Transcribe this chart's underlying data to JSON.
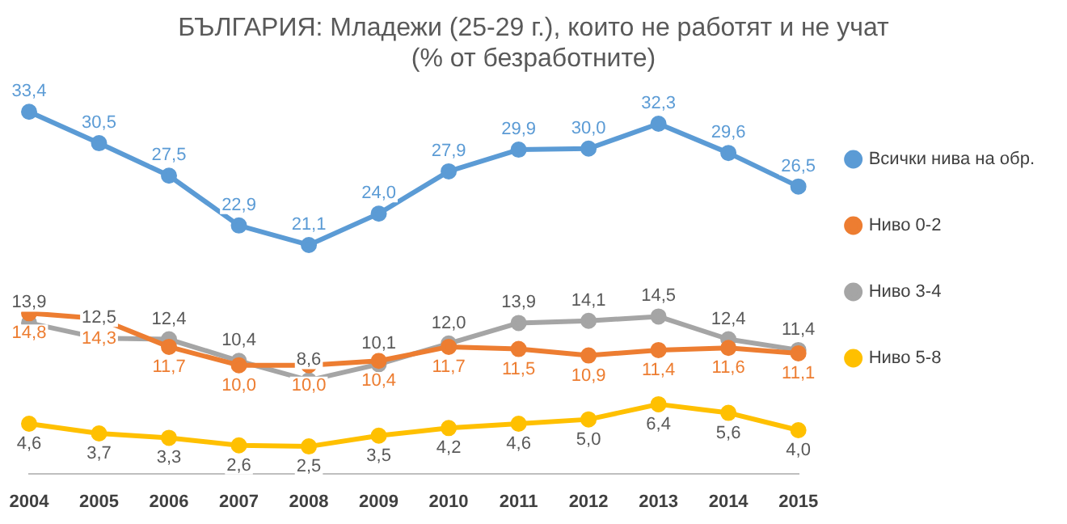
{
  "chart_data": {
    "type": "line",
    "title": "БЪЛГАРИЯ: Младежи (25-29 г.), които не работят и не учат",
    "subtitle": "(% от безработните)",
    "categories": [
      "2004",
      "2005",
      "2006",
      "2007",
      "2008",
      "2009",
      "2010",
      "2011",
      "2012",
      "2013",
      "2014",
      "2015"
    ],
    "series": [
      {
        "name": "Всички нива на обр.",
        "color": "#5b9bd5",
        "values": [
          33.4,
          30.5,
          27.5,
          22.9,
          21.1,
          24.0,
          27.9,
          29.9,
          30.0,
          32.3,
          29.6,
          26.5
        ],
        "value_labels": [
          "33,4",
          "30,5",
          "27,5",
          "22,9",
          "21,1",
          "24,0",
          "27,9",
          "29,9",
          "30,0",
          "32,3",
          "29,6",
          "26,5"
        ]
      },
      {
        "name": "Ниво 0-2",
        "color": "#ed7d31",
        "values": [
          14.8,
          14.3,
          11.7,
          10.0,
          10.0,
          10.4,
          11.7,
          11.5,
          10.9,
          11.4,
          11.6,
          11.1
        ],
        "value_labels": [
          "14,8",
          "14,3",
          "11,7",
          "10,0",
          "10,0",
          "10,4",
          "11,7",
          "11,5",
          "10,9",
          "11,4",
          "11,6",
          "11,1"
        ]
      },
      {
        "name": "Ниво 3-4",
        "color": "#a5a5a5",
        "values": [
          13.9,
          12.5,
          12.4,
          10.4,
          8.6,
          10.1,
          12.0,
          13.9,
          14.1,
          14.5,
          12.4,
          11.4
        ],
        "value_labels": [
          "13,9",
          "12,5",
          "12,4",
          "10,4",
          "8,6",
          "10,1",
          "12,0",
          "13,9",
          "14,1",
          "14,5",
          "12,4",
          "11,4"
        ]
      },
      {
        "name": "Ниво 5-8",
        "color": "#ffc000",
        "values": [
          4.6,
          3.7,
          3.3,
          2.6,
          2.5,
          3.5,
          4.2,
          4.6,
          5.0,
          6.4,
          5.6,
          4.0
        ],
        "value_labels": [
          "4,6",
          "3,7",
          "3,3",
          "2,6",
          "2,5",
          "3,5",
          "4,2",
          "4,6",
          "5,0",
          "6,4",
          "5,6",
          "4,0"
        ]
      }
    ],
    "tick_labels": "x",
    "grid": false,
    "legend": "right",
    "marker": "circle",
    "line_style": "solid"
  }
}
